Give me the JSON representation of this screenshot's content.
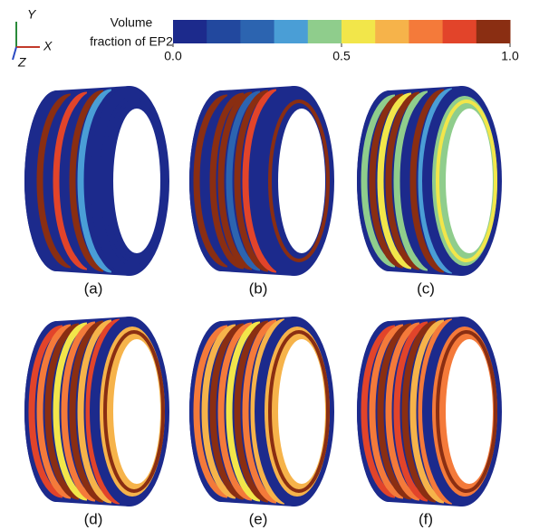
{
  "axes_triad": {
    "y": "Y",
    "x": "X",
    "z": "Z"
  },
  "colorbar": {
    "title": [
      "Volume",
      "fraction of EP2"
    ],
    "lim": [
      0,
      1
    ],
    "colors": [
      "#1c2a8c",
      "#22489e",
      "#2c64b0",
      "#4a9ed6",
      "#8fcd8c",
      "#f2e64a",
      "#f6b34a",
      "#f47a3a",
      "#e2442a",
      "#8a2e12"
    ],
    "ticks": [
      {
        "value": 0,
        "label": "0.0"
      },
      {
        "value": 0.5,
        "label": "0.5"
      },
      {
        "value": 1,
        "label": "1.0"
      }
    ]
  },
  "panels": [
    "(a)",
    "(b)",
    "(c)",
    "(d)",
    "(e)",
    "(f)"
  ]
}
